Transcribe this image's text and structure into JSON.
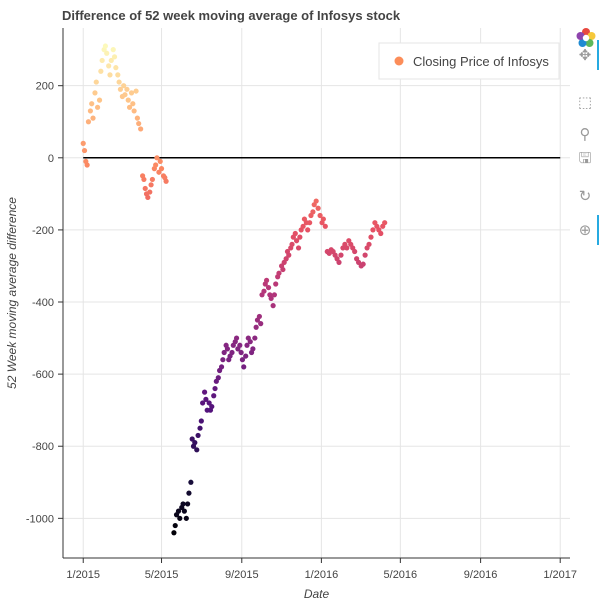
{
  "title": "Difference of 52 week moving average of Infosys stock",
  "toolbar": {
    "tools": [
      {
        "name": "pan-icon",
        "glyph": "✥",
        "active": true
      },
      {
        "name": "box-zoom-icon",
        "glyph": "⬚",
        "active": false
      },
      {
        "name": "wheel-zoom-icon",
        "glyph": "⚲",
        "active": false
      },
      {
        "name": "save-icon",
        "glyph": "🖫",
        "active": false
      },
      {
        "name": "reset-icon",
        "glyph": "↻",
        "active": false
      },
      {
        "name": "hover-icon",
        "glyph": "⊕",
        "active": true
      }
    ]
  },
  "chart_data": {
    "type": "scatter",
    "title": "Difference of 52 week moving average of Infosys stock",
    "xlabel": "Date",
    "ylabel": "52 Week moving average difference",
    "xlim": [
      "2014-12-01",
      "2017-01-16"
    ],
    "ylim": [
      -1110,
      360
    ],
    "x_ticks": [
      "1/2015",
      "5/2015",
      "9/2015",
      "1/2016",
      "5/2016",
      "9/2016",
      "1/2017"
    ],
    "y_ticks": [
      200,
      0,
      -200,
      -400,
      -600,
      -800,
      -1000
    ],
    "grid": true,
    "legend": {
      "position": "top-right",
      "entries": [
        {
          "label": "Closing Price of Infosys",
          "color": "#fc8d59"
        }
      ]
    },
    "reference_line": {
      "y": 0,
      "x_from": "2015-01-01",
      "x_to": "2017-01-01",
      "color": "#000000"
    },
    "series": [
      {
        "name": "Closing Price of Infosys",
        "color_map": "magma",
        "color_range": [
          -1050,
          320
        ],
        "points": [
          [
            "2015-01-01",
            40
          ],
          [
            "2015-01-03",
            20
          ],
          [
            "2015-01-05",
            -10
          ],
          [
            "2015-01-07",
            -20
          ],
          [
            "2015-01-09",
            100
          ],
          [
            "2015-01-12",
            130
          ],
          [
            "2015-01-14",
            150
          ],
          [
            "2015-01-16",
            110
          ],
          [
            "2015-01-19",
            180
          ],
          [
            "2015-01-21",
            210
          ],
          [
            "2015-01-23",
            140
          ],
          [
            "2015-01-26",
            160
          ],
          [
            "2015-01-28",
            240
          ],
          [
            "2015-01-30",
            270
          ],
          [
            "2015-02-02",
            300
          ],
          [
            "2015-02-04",
            310
          ],
          [
            "2015-02-06",
            290
          ],
          [
            "2015-02-09",
            255
          ],
          [
            "2015-02-11",
            230
          ],
          [
            "2015-02-13",
            270
          ],
          [
            "2015-02-16",
            300
          ],
          [
            "2015-02-18",
            280
          ],
          [
            "2015-02-20",
            250
          ],
          [
            "2015-02-23",
            230
          ],
          [
            "2015-02-25",
            210
          ],
          [
            "2015-02-27",
            190
          ],
          [
            "2015-03-02",
            170
          ],
          [
            "2015-03-04",
            200
          ],
          [
            "2015-03-06",
            175
          ],
          [
            "2015-03-09",
            190
          ],
          [
            "2015-03-11",
            160
          ],
          [
            "2015-03-13",
            140
          ],
          [
            "2015-03-16",
            180
          ],
          [
            "2015-03-18",
            150
          ],
          [
            "2015-03-20",
            130
          ],
          [
            "2015-03-23",
            185
          ],
          [
            "2015-03-25",
            110
          ],
          [
            "2015-03-27",
            95
          ],
          [
            "2015-03-30",
            80
          ],
          [
            "2015-04-02",
            -50
          ],
          [
            "2015-04-04",
            -60
          ],
          [
            "2015-04-06",
            -85
          ],
          [
            "2015-04-08",
            -100
          ],
          [
            "2015-04-10",
            -110
          ],
          [
            "2015-04-13",
            -95
          ],
          [
            "2015-04-15",
            -75
          ],
          [
            "2015-04-17",
            -60
          ],
          [
            "2015-04-20",
            -30
          ],
          [
            "2015-04-22",
            -20
          ],
          [
            "2015-04-24",
            0
          ],
          [
            "2015-04-27",
            -40
          ],
          [
            "2015-04-29",
            -10
          ],
          [
            "2015-05-01",
            -30
          ],
          [
            "2015-05-04",
            -50
          ],
          [
            "2015-05-06",
            -55
          ],
          [
            "2015-05-08",
            -65
          ],
          [
            "2015-05-20",
            -1040
          ],
          [
            "2015-05-22",
            -1020
          ],
          [
            "2015-05-24",
            -990
          ],
          [
            "2015-05-27",
            -980
          ],
          [
            "2015-05-29",
            -1000
          ],
          [
            "2015-06-01",
            -970
          ],
          [
            "2015-06-03",
            -960
          ],
          [
            "2015-06-05",
            -980
          ],
          [
            "2015-06-08",
            -1000
          ],
          [
            "2015-06-10",
            -960
          ],
          [
            "2015-06-12",
            -930
          ],
          [
            "2015-06-15",
            -900
          ],
          [
            "2015-06-17",
            -780
          ],
          [
            "2015-06-19",
            -800
          ],
          [
            "2015-06-21",
            -790
          ],
          [
            "2015-06-24",
            -810
          ],
          [
            "2015-06-26",
            -770
          ],
          [
            "2015-06-29",
            -750
          ],
          [
            "2015-07-01",
            -730
          ],
          [
            "2015-07-03",
            -680
          ],
          [
            "2015-07-06",
            -650
          ],
          [
            "2015-07-08",
            -670
          ],
          [
            "2015-07-10",
            -700
          ],
          [
            "2015-07-13",
            -680
          ],
          [
            "2015-07-15",
            -700
          ],
          [
            "2015-07-17",
            -690
          ],
          [
            "2015-07-20",
            -660
          ],
          [
            "2015-07-22",
            -640
          ],
          [
            "2015-07-24",
            -620
          ],
          [
            "2015-07-27",
            -610
          ],
          [
            "2015-07-29",
            -590
          ],
          [
            "2015-08-01",
            -580
          ],
          [
            "2015-08-03",
            -560
          ],
          [
            "2015-08-05",
            -540
          ],
          [
            "2015-08-08",
            -520
          ],
          [
            "2015-08-10",
            -530
          ],
          [
            "2015-08-12",
            -560
          ],
          [
            "2015-08-14",
            -550
          ],
          [
            "2015-08-17",
            -540
          ],
          [
            "2015-08-19",
            -520
          ],
          [
            "2015-08-22",
            -510
          ],
          [
            "2015-08-24",
            -500
          ],
          [
            "2015-08-26",
            -530
          ],
          [
            "2015-08-29",
            -520
          ],
          [
            "2015-08-31",
            -540
          ],
          [
            "2015-09-02",
            -560
          ],
          [
            "2015-09-04",
            -580
          ],
          [
            "2015-09-07",
            -550
          ],
          [
            "2015-09-09",
            -520
          ],
          [
            "2015-09-11",
            -500
          ],
          [
            "2015-09-14",
            -510
          ],
          [
            "2015-09-16",
            -540
          ],
          [
            "2015-09-18",
            -530
          ],
          [
            "2015-09-21",
            -500
          ],
          [
            "2015-09-23",
            -470
          ],
          [
            "2015-09-25",
            -450
          ],
          [
            "2015-09-28",
            -440
          ],
          [
            "2015-09-30",
            -460
          ],
          [
            "2015-10-02",
            -380
          ],
          [
            "2015-10-05",
            -370
          ],
          [
            "2015-10-07",
            -350
          ],
          [
            "2015-10-09",
            -340
          ],
          [
            "2015-10-12",
            -360
          ],
          [
            "2015-10-14",
            -380
          ],
          [
            "2015-10-16",
            -390
          ],
          [
            "2015-10-19",
            -410
          ],
          [
            "2015-10-21",
            -380
          ],
          [
            "2015-10-23",
            -350
          ],
          [
            "2015-10-26",
            -330
          ],
          [
            "2015-10-28",
            -320
          ],
          [
            "2015-11-01",
            -300
          ],
          [
            "2015-11-03",
            -310
          ],
          [
            "2015-11-05",
            -290
          ],
          [
            "2015-11-08",
            -280
          ],
          [
            "2015-11-10",
            -260
          ],
          [
            "2015-11-12",
            -270
          ],
          [
            "2015-11-15",
            -250
          ],
          [
            "2015-11-17",
            -240
          ],
          [
            "2015-11-19",
            -220
          ],
          [
            "2015-11-22",
            -210
          ],
          [
            "2015-11-24",
            -230
          ],
          [
            "2015-11-27",
            -250
          ],
          [
            "2015-11-29",
            -220
          ],
          [
            "2015-12-01",
            -200
          ],
          [
            "2015-12-04",
            -190
          ],
          [
            "2015-12-06",
            -170
          ],
          [
            "2015-12-09",
            -180
          ],
          [
            "2015-12-11",
            -200
          ],
          [
            "2015-12-14",
            -180
          ],
          [
            "2015-12-16",
            -160
          ],
          [
            "2015-12-19",
            -150
          ],
          [
            "2015-12-21",
            -130
          ],
          [
            "2015-12-24",
            -120
          ],
          [
            "2015-12-27",
            -140
          ],
          [
            "2015-12-30",
            -160
          ],
          [
            "2016-01-02",
            -180
          ],
          [
            "2016-01-04",
            -170
          ],
          [
            "2016-01-07",
            -190
          ],
          [
            "2016-01-10",
            -260
          ],
          [
            "2016-01-13",
            -265
          ],
          [
            "2016-01-16",
            -255
          ],
          [
            "2016-01-19",
            -260
          ],
          [
            "2016-01-22",
            -270
          ],
          [
            "2016-01-25",
            -280
          ],
          [
            "2016-01-28",
            -290
          ],
          [
            "2016-01-31",
            -270
          ],
          [
            "2016-02-03",
            -250
          ],
          [
            "2016-02-06",
            -240
          ],
          [
            "2016-02-09",
            -250
          ],
          [
            "2016-02-12",
            -230
          ],
          [
            "2016-02-15",
            -240
          ],
          [
            "2016-02-18",
            -250
          ],
          [
            "2016-02-21",
            -260
          ],
          [
            "2016-02-24",
            -280
          ],
          [
            "2016-02-27",
            -290
          ],
          [
            "2016-03-02",
            -300
          ],
          [
            "2016-03-05",
            -295
          ],
          [
            "2016-03-08",
            -270
          ],
          [
            "2016-03-11",
            -250
          ],
          [
            "2016-03-14",
            -240
          ],
          [
            "2016-03-17",
            -220
          ],
          [
            "2016-03-20",
            -200
          ],
          [
            "2016-03-23",
            -180
          ],
          [
            "2016-03-26",
            -190
          ],
          [
            "2016-03-29",
            -200
          ],
          [
            "2016-04-01",
            -210
          ],
          [
            "2016-04-04",
            -190
          ],
          [
            "2016-04-07",
            -180
          ]
        ]
      }
    ]
  }
}
